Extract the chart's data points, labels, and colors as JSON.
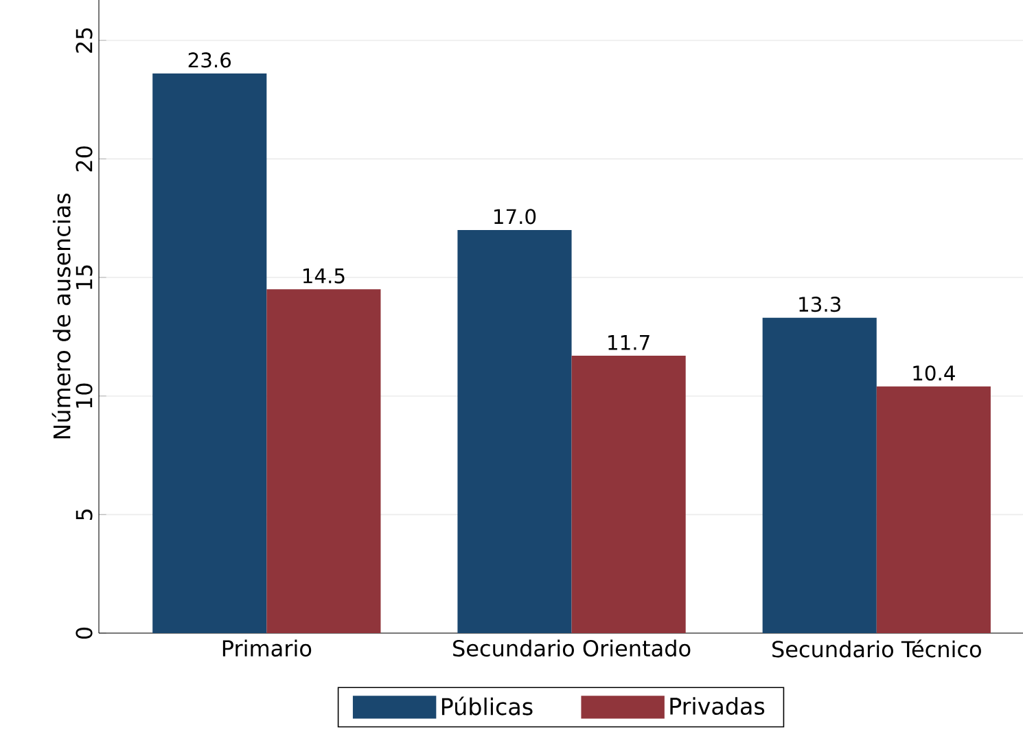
{
  "chart_data": {
    "type": "bar",
    "ylabel": "Número de ausencias",
    "categories": [
      "Primario",
      "Secundario Orientado",
      "Secundario Técnico"
    ],
    "series": [
      {
        "name": "Públicas",
        "color": "#1a476f",
        "values": [
          23.6,
          17.0,
          13.3
        ],
        "value_labels": [
          "23.6",
          "17.0",
          "13.3"
        ]
      },
      {
        "name": "Privadas",
        "color": "#90353b",
        "values": [
          14.5,
          11.7,
          10.4
        ],
        "value_labels": [
          "14.5",
          "11.7",
          "10.4"
        ]
      }
    ],
    "ylim": [
      0,
      26.7
    ],
    "yticks": [
      0,
      5,
      10,
      15,
      20,
      25
    ],
    "grid": "y",
    "legend": "bottom"
  }
}
